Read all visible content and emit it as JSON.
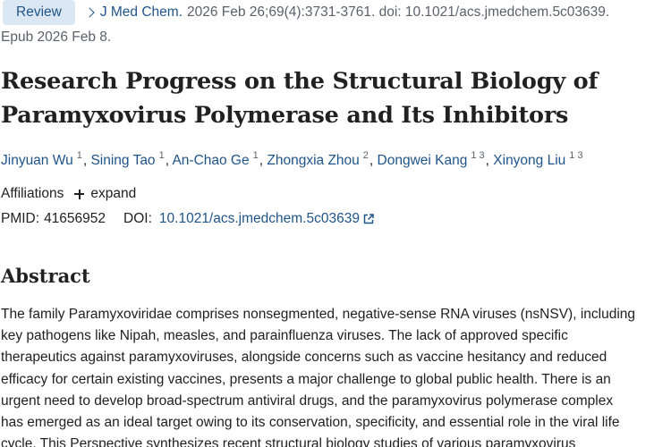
{
  "header": {
    "badge": "Review",
    "journal": "J Med Chem.",
    "citation": "2026 Feb 26;69(4):3731-3761. doi: 10.1021/acs.jmedchem.5c03639.",
    "epub": "Epub 2026 Feb 8."
  },
  "article": {
    "title": "Research Progress on the Structural Biology of Paramyxovirus Polymerase and Its Inhibitors",
    "authors": [
      {
        "name": "Jinyuan Wu",
        "affiliations": "1"
      },
      {
        "name": "Sining Tao",
        "affiliations": "1"
      },
      {
        "name": "An-Chao Ge",
        "affiliations": "1"
      },
      {
        "name": "Zhongxia Zhou",
        "affiliations": "2"
      },
      {
        "name": "Dongwei Kang",
        "affiliations": "1 3"
      },
      {
        "name": "Xinyong Liu",
        "affiliations": "1 3"
      }
    ],
    "affiliations_label": "Affiliations",
    "expand_label": "expand",
    "pmid_label": "PMID:",
    "pmid": "41656952",
    "doi_label": "DOI:",
    "doi": "10.1021/acs.jmedchem.5c03639"
  },
  "abstract": {
    "heading": "Abstract",
    "lines": [
      "The family Paramyxoviridae comprises nonsegmented, negative-sense RNA viruses (nsNSV), including",
      "key pathogens like Nipah, measles, and parainfluenza viruses. The lack of approved specific",
      "therapeutics against paramyxoviruses, alongside concerns such as vaccine hesitancy and reduced",
      "efficacy for certain existing vaccines, presents a major challenge to global public health. There is an",
      "urgent need to develop broad-spectrum antiviral drugs, and the paramyxovirus polymerase complex",
      "has emerged as an ideal target owing to its conservation, specificity, and essential role in the viral life",
      "cycle. This Perspective synthesizes recent structural biology studies of various paramyxovirus"
    ]
  },
  "icons": {
    "journal_chevron": "chevron-right-icon",
    "expand": "plus-icon",
    "doi_external": "external-link-icon"
  },
  "colors": {
    "link": "#20558a",
    "badge_bg": "#dbe7f2",
    "text": "#212121",
    "muted": "#5b616b"
  }
}
